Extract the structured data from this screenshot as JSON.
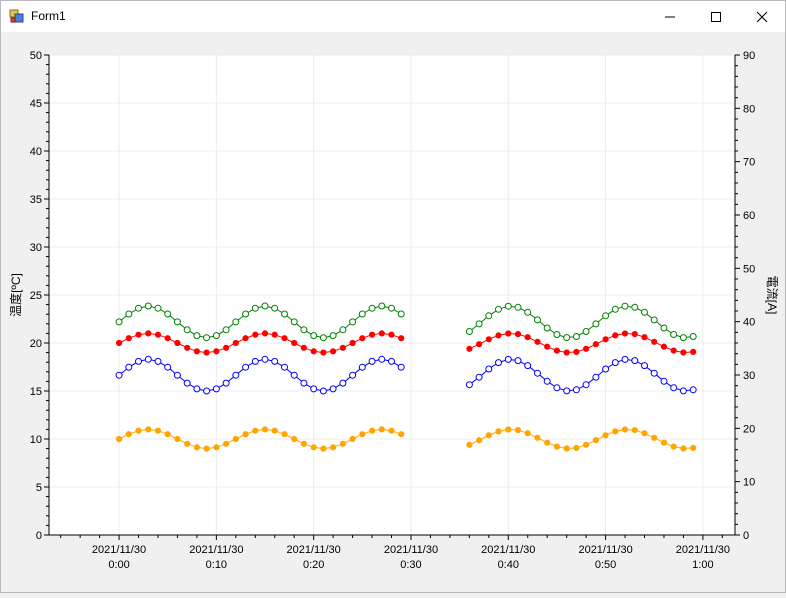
{
  "window": {
    "title": "Form1"
  },
  "chart_data": {
    "type": "line",
    "x_ticks": [
      "0:00",
      "0:10",
      "0:20",
      "0:30",
      "0:40",
      "0:50",
      "1:00"
    ],
    "x_date_label": "2021/11/30",
    "y_left": {
      "label": "温度[ºC]",
      "ylim": [
        0,
        50
      ],
      "ticks": [
        0,
        5,
        10,
        15,
        20,
        25,
        30,
        35,
        40,
        45,
        50
      ]
    },
    "y_right": {
      "label": "電流[A]",
      "ylim": [
        0,
        90
      ],
      "ticks": [
        0,
        10,
        20,
        30,
        40,
        50,
        60,
        70,
        80,
        90
      ]
    },
    "grid": true,
    "series": [
      {
        "color": "#008000",
        "marker": "open-circle",
        "offset": 22.2,
        "amplitude": 1.65
      },
      {
        "color": "#ff0000",
        "marker": "filled-circle",
        "offset": 20.0,
        "amplitude": 1.0
      },
      {
        "color": "#0000ff",
        "marker": "open-circle",
        "offset": 16.65,
        "amplitude": 1.65
      },
      {
        "color": "#ffa500",
        "marker": "filled-circle",
        "offset": 10.0,
        "amplitude": 1.0
      }
    ],
    "segments": [
      {
        "start_min": 0,
        "end_min": 29,
        "phase": 0
      },
      {
        "start_min": 36,
        "end_min": 59,
        "phase": -0.65
      }
    ],
    "period_min": 12
  }
}
